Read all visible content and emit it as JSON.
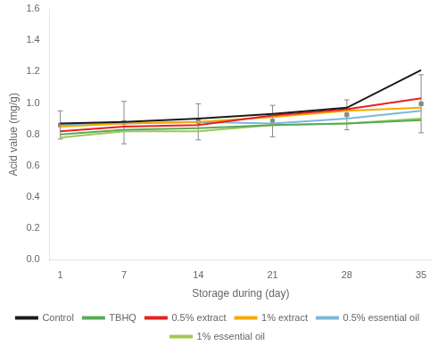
{
  "chart_data": {
    "type": "line",
    "xlabel": "Storage during (day)",
    "ylabel": "Acid value (mg/g)",
    "x": [
      1,
      7,
      14,
      21,
      28,
      35
    ],
    "series": [
      {
        "name": "Control",
        "color": "#1a1a1a",
        "values": [
          0.87,
          0.88,
          0.9,
          0.93,
          0.97,
          1.21
        ]
      },
      {
        "name": "TBHQ",
        "color": "#5aaa5a",
        "values": [
          0.8,
          0.83,
          0.84,
          0.86,
          0.87,
          0.89
        ]
      },
      {
        "name": "0.5% extract",
        "color": "#e82020",
        "values": [
          0.82,
          0.85,
          0.86,
          0.92,
          0.96,
          1.03
        ]
      },
      {
        "name": "1% extract",
        "color": "#f5a800",
        "values": [
          0.85,
          0.87,
          0.88,
          0.91,
          0.95,
          0.97
        ]
      },
      {
        "name": "0.5% essential oil",
        "color": "#7ab8d9",
        "values": [
          0.86,
          0.87,
          0.88,
          0.87,
          0.9,
          0.95
        ]
      },
      {
        "name": "1% essential oil",
        "color": "#a0c850",
        "values": [
          0.78,
          0.82,
          0.82,
          0.86,
          0.87,
          0.9
        ]
      }
    ],
    "error_bars": {
      "x": [
        1,
        7,
        14,
        21,
        28,
        35
      ],
      "mean": [
        0.86,
        0.875,
        0.88,
        0.885,
        0.925,
        0.995
      ],
      "error": [
        0.09,
        0.135,
        0.115,
        0.1,
        0.095,
        0.185
      ],
      "color": "#888888",
      "marker": "square"
    },
    "xlim": [
      0,
      36
    ],
    "xticks": [
      1,
      7,
      14,
      21,
      28,
      35
    ],
    "ylim": [
      0,
      1.6
    ],
    "yticks": [
      {
        "value": 0,
        "label": "0.0"
      },
      {
        "value": 0.2,
        "label": "0.2"
      },
      {
        "value": 0.4,
        "label": "0.4"
      },
      {
        "value": 0.6,
        "label": "0.6"
      },
      {
        "value": 0.8,
        "label": "0.8"
      },
      {
        "value": 1.0,
        "label": "1.0"
      },
      {
        "value": 1.2,
        "label": "1.2"
      },
      {
        "value": 1.4,
        "label": "1.4"
      },
      {
        "value": 1.6,
        "label": "1.6"
      }
    ],
    "grid": false,
    "legend": "bottom"
  }
}
